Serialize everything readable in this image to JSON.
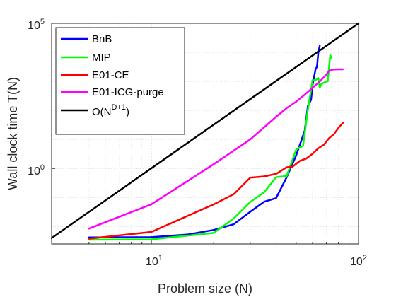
{
  "chart_data": {
    "type": "line",
    "scale": {
      "x": "log",
      "y": "log"
    },
    "xlabel": "Problem size (N)",
    "ylabel": "Wall clock time T(N)",
    "xlim": [
      3.3,
      100
    ],
    "ylim": [
      0.0025,
      100000
    ],
    "x_ticks": [
      {
        "value": 10,
        "base": "10",
        "exp": "1"
      },
      {
        "value": 100,
        "base": "10",
        "exp": "2"
      }
    ],
    "y_ticks": [
      {
        "value": 1,
        "base": "10",
        "exp": "0"
      },
      {
        "value": 100000,
        "base": "10",
        "exp": "5"
      }
    ],
    "grid": true,
    "legend_position": "top-left",
    "series": [
      {
        "name": "BnB",
        "color": "#0000ff",
        "points": [
          [
            5,
            0.0042
          ],
          [
            10,
            0.0043
          ],
          [
            15,
            0.0053
          ],
          [
            20,
            0.0076
          ],
          [
            25,
            0.012
          ],
          [
            30,
            0.032
          ],
          [
            35,
            0.071
          ],
          [
            40,
            0.095
          ],
          [
            45,
            0.5
          ],
          [
            50,
            2.8
          ],
          [
            55,
            20
          ],
          [
            57,
            145
          ],
          [
            59,
            230
          ],
          [
            60,
            750
          ],
          [
            62,
            2600
          ],
          [
            63,
            3200
          ],
          [
            64,
            10000
          ],
          [
            65,
            17000
          ]
        ]
      },
      {
        "name": "MIP",
        "color": "#00ff00",
        "points": [
          [
            5,
            0.0035
          ],
          [
            10,
            0.0036
          ],
          [
            20,
            0.006
          ],
          [
            25,
            0.019
          ],
          [
            30,
            0.07
          ],
          [
            35,
            0.15
          ],
          [
            40,
            0.5
          ],
          [
            45,
            0.55
          ],
          [
            50,
            4.5
          ],
          [
            54,
            6
          ],
          [
            57,
            110
          ],
          [
            60,
            1100
          ],
          [
            62,
            1100
          ],
          [
            64,
            1300
          ],
          [
            65,
            600
          ],
          [
            66,
            800
          ],
          [
            68,
            900
          ],
          [
            70,
            1000
          ],
          [
            71,
            1000
          ],
          [
            73,
            8000
          ],
          [
            74,
            6500
          ]
        ]
      },
      {
        "name": "E01-CE",
        "color": "#ff0000",
        "points": [
          [
            5,
            0.0038
          ],
          [
            10,
            0.0065
          ],
          [
            20,
            0.058
          ],
          [
            25,
            0.13
          ],
          [
            30,
            0.48
          ],
          [
            35,
            0.53
          ],
          [
            40,
            0.65
          ],
          [
            45,
            1.1
          ],
          [
            48,
            1.15
          ],
          [
            52,
            1.8
          ],
          [
            56,
            2.2
          ],
          [
            60,
            3.2
          ],
          [
            64,
            5
          ],
          [
            68,
            6.5
          ],
          [
            72,
            11
          ],
          [
            76,
            15
          ],
          [
            80,
            25
          ],
          [
            84,
            37
          ]
        ]
      },
      {
        "name": "E01-ICG-purge",
        "color": "#ff00ff",
        "points": [
          [
            5,
            0.0085
          ],
          [
            10,
            0.058
          ],
          [
            20,
            1.4
          ],
          [
            30,
            10
          ],
          [
            40,
            60
          ],
          [
            45,
            120
          ],
          [
            50,
            200
          ],
          [
            55,
            350
          ],
          [
            60,
            600
          ],
          [
            65,
            1000
          ],
          [
            70,
            1700
          ],
          [
            72,
            2300
          ],
          [
            75,
            2550
          ],
          [
            80,
            2600
          ],
          [
            84,
            2600
          ]
        ]
      },
      {
        "name": "O(N^(D+1))",
        "legend_base": "O(N",
        "legend_sup": "D+1",
        "legend_suffix": ")",
        "color": "#000000",
        "points": [
          [
            3.3,
            0.004
          ],
          [
            100,
            100000
          ]
        ]
      }
    ]
  }
}
